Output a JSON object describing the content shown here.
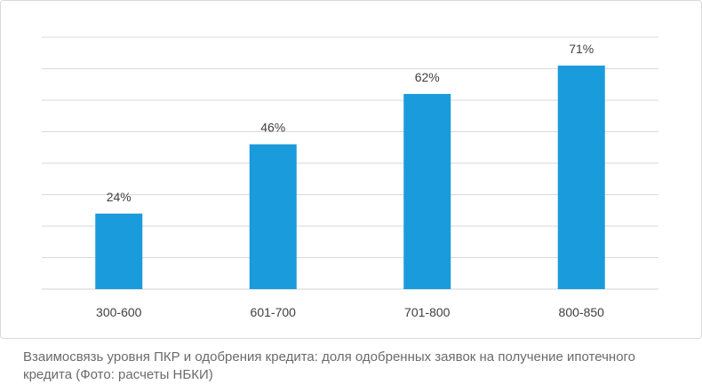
{
  "chart_data": {
    "type": "bar",
    "categories": [
      "300-600",
      "601-700",
      "701-800",
      "800-850"
    ],
    "values": [
      24,
      46,
      62,
      71
    ],
    "data_labels": [
      "24%",
      "46%",
      "62%",
      "71%"
    ],
    "ylim": [
      0,
      80
    ],
    "grid": true,
    "gridline_count": 9,
    "bar_color": "#1a9bdc",
    "grid_color": "#d9d9d9",
    "label_color": "#404040"
  },
  "caption": "Взаимосвязь уровня ПКР и одобрения кредита: доля одобренных заявок на получение ипотечного кредита (Фото: расчеты НБКИ)"
}
